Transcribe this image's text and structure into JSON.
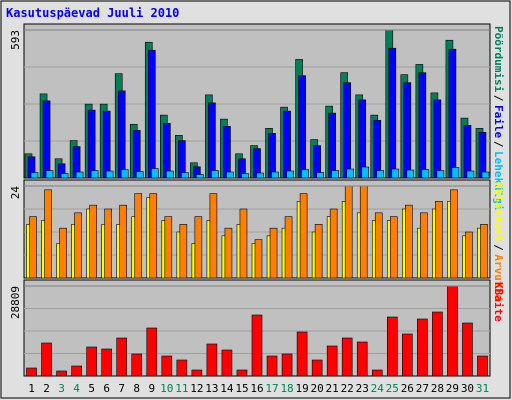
{
  "chart_data": [
    {
      "type": "bar",
      "title": "Kasutuspäevad Juuli 2010",
      "legend_separator": "/",
      "ylim": [
        0,
        593
      ],
      "yticks": [
        593
      ],
      "series": [
        {
          "name": "Pöördumisi",
          "color": "#00805a",
          "values": [
            97,
            337,
            77,
            150,
            296,
            296,
            418,
            215,
            544,
            252,
            171,
            61,
            333,
            236,
            97,
            130,
            199,
            284,
            475,
            154,
            288,
            422,
            333,
            252,
            593,
            414,
            455,
            341,
            552,
            240,
            199
          ]
        },
        {
          "name": "Faile",
          "color": "#0000ff",
          "values": [
            85,
            309,
            57,
            126,
            272,
            268,
            349,
            191,
            512,
            219,
            150,
            45,
            301,
            207,
            77,
            118,
            179,
            268,
            410,
            130,
            260,
            382,
            313,
            231,
            520,
            382,
            422,
            313,
            516,
            211,
            183
          ]
        },
        {
          "name": "Lehekülgi",
          "color": "#00c0ff",
          "values": [
            22,
            30,
            18,
            24,
            30,
            28,
            34,
            26,
            38,
            28,
            22,
            14,
            30,
            24,
            18,
            20,
            24,
            28,
            34,
            22,
            30,
            36,
            44,
            30,
            36,
            32,
            34,
            30,
            42,
            28,
            24
          ]
        }
      ]
    },
    {
      "type": "bar",
      "legend_separator": "/",
      "ylim": [
        0,
        24
      ],
      "yticks": [
        24
      ],
      "series": [
        {
          "name": "Külastusi",
          "color": "#ffff00",
          "values": [
            14,
            15,
            9,
            14,
            18,
            14,
            14,
            16,
            21,
            15,
            12,
            9,
            15,
            11,
            14,
            9,
            11,
            13,
            20,
            12,
            16,
            20,
            17,
            15,
            15,
            18,
            13,
            18,
            20,
            11,
            13
          ]
        },
        {
          "name": "Arvutid",
          "color": "#ff8000",
          "values": [
            16,
            23,
            13,
            17,
            19,
            18,
            19,
            22,
            22,
            16,
            14,
            16,
            22,
            13,
            18,
            10,
            13,
            16,
            22,
            14,
            18,
            24,
            24,
            17,
            16,
            19,
            17,
            20,
            23,
            12,
            14
          ]
        }
      ]
    },
    {
      "type": "bar",
      "ylim": [
        0,
        28809
      ],
      "yticks": [
        28809
      ],
      "categories": [
        "1",
        "2",
        "3",
        "4",
        "5",
        "6",
        "7",
        "8",
        "9",
        "10",
        "11",
        "12",
        "13",
        "14",
        "15",
        "16",
        "17",
        "18",
        "19",
        "20",
        "21",
        "22",
        "23",
        "24",
        "25",
        "26",
        "27",
        "28",
        "29",
        "30",
        "31"
      ],
      "category_colors": [
        "#000000",
        "#000000",
        "#00805a",
        "#00805a",
        "#000000",
        "#000000",
        "#000000",
        "#000000",
        "#000000",
        "#00805a",
        "#00805a",
        "#000000",
        "#000000",
        "#000000",
        "#000000",
        "#000000",
        "#00805a",
        "#00805a",
        "#000000",
        "#000000",
        "#000000",
        "#000000",
        "#000000",
        "#00805a",
        "#00805a",
        "#000000",
        "#000000",
        "#000000",
        "#000000",
        "#000000",
        "#00805a"
      ],
      "series": [
        {
          "name": "KBaite",
          "color": "#ff0000",
          "values": [
            2561,
            10563,
            1600,
            3201,
            9283,
            8643,
            12164,
            7042,
            15365,
            6402,
            5122,
            1921,
            10243,
            8323,
            1921,
            19526,
            6402,
            7042,
            14084,
            5122,
            9603,
            12164,
            10883,
            1921,
            18886,
            13444,
            18246,
            20486,
            28809,
            16965,
            6402
          ]
        }
      ]
    }
  ]
}
